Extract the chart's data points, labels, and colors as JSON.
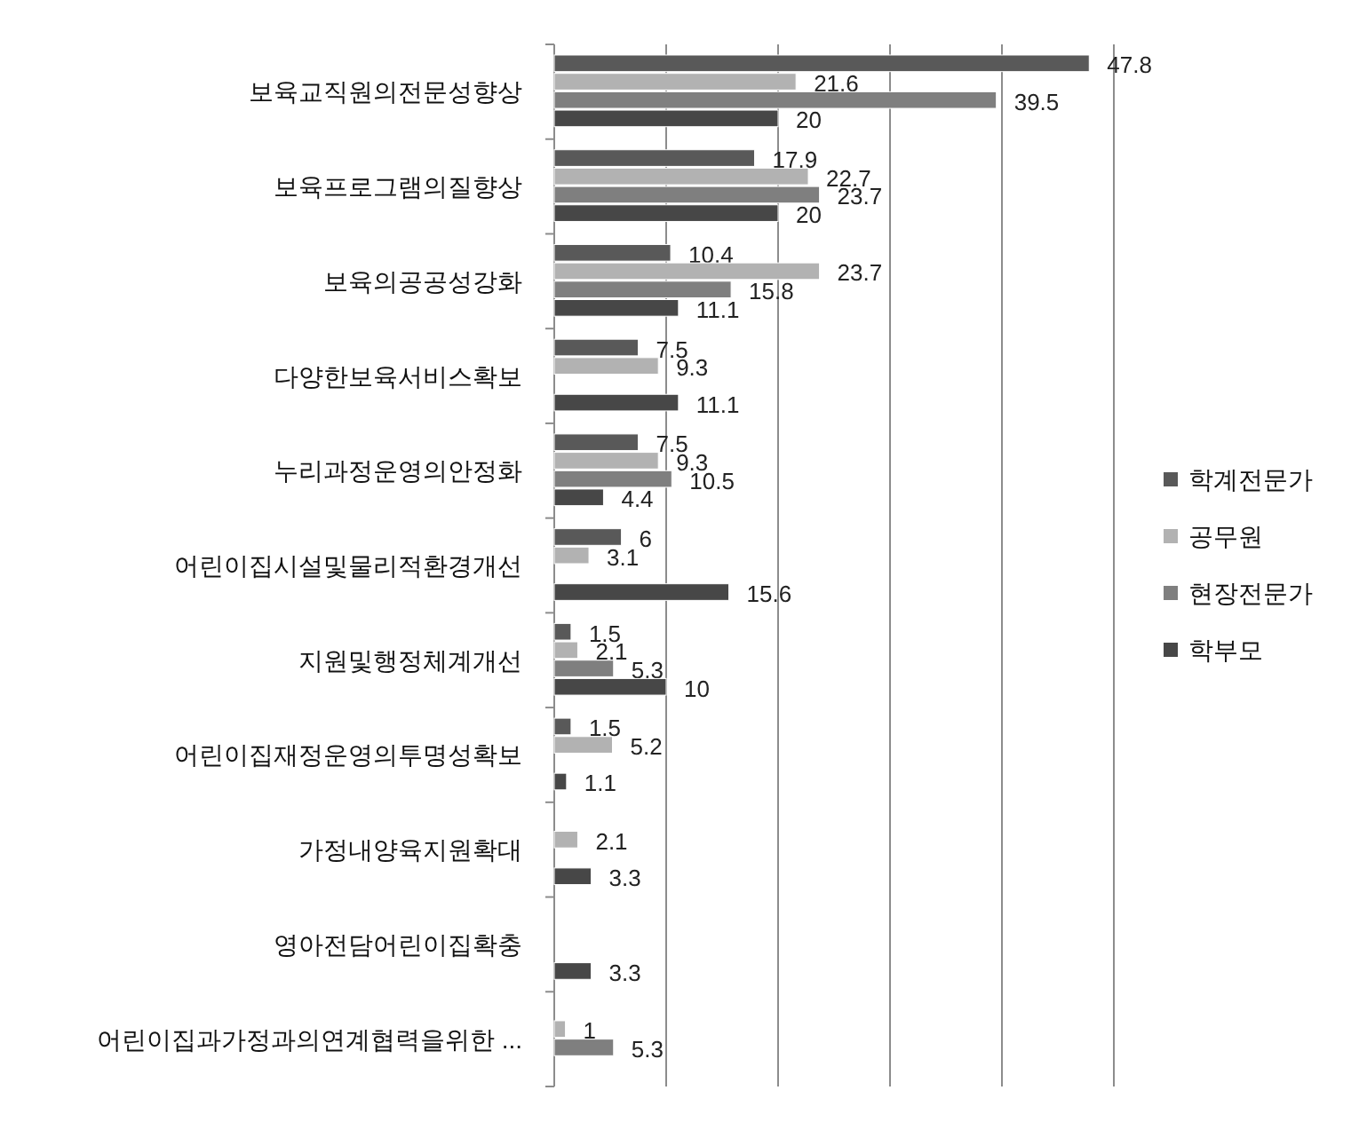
{
  "chart_data": {
    "type": "bar",
    "orientation": "horizontal",
    "categories": [
      "보육교직원의전문성향상",
      "보육프로그램의질향상",
      "보육의공공성강화",
      "다양한보육서비스확보",
      "누리과정운영의안정화",
      "어린이집시설및물리적환경개선",
      "지원및행정체계개선",
      "어린이집재정운영의투명성확보",
      "가정내양육지원확대",
      "영아전담어린이집확충",
      "어린이집과가정과의연계협력을위한 ..."
    ],
    "series": [
      {
        "name": "학계전문가",
        "color": "#595959",
        "values": [
          47.8,
          17.9,
          10.4,
          7.5,
          7.5,
          6,
          1.5,
          1.5,
          null,
          null,
          null
        ]
      },
      {
        "name": "공무원",
        "color": "#b2b2b2",
        "values": [
          21.6,
          22.7,
          23.7,
          9.3,
          9.3,
          3.1,
          2.1,
          5.2,
          2.1,
          null,
          1
        ]
      },
      {
        "name": "현장전문가",
        "color": "#7f7f7f",
        "values": [
          39.5,
          23.7,
          15.8,
          null,
          10.5,
          null,
          5.3,
          null,
          null,
          null,
          5.3
        ]
      },
      {
        "name": "학부모",
        "color": "#474747",
        "values": [
          20,
          20,
          11.1,
          11.1,
          4.4,
          15.6,
          10,
          1.1,
          3.3,
          3.3,
          null
        ]
      }
    ],
    "xlim": [
      0,
      50
    ],
    "xticks": [
      {
        "value": 0,
        "label": null
      },
      {
        "value": 10,
        "label": null
      },
      {
        "value": 20,
        "label": null
      },
      {
        "value": 30,
        "label": null
      },
      {
        "value": 40,
        "label": null
      },
      {
        "value": 50,
        "label": null
      }
    ],
    "grid": "x",
    "legend": "right",
    "data_labels": true,
    "tick_labels": "y"
  }
}
